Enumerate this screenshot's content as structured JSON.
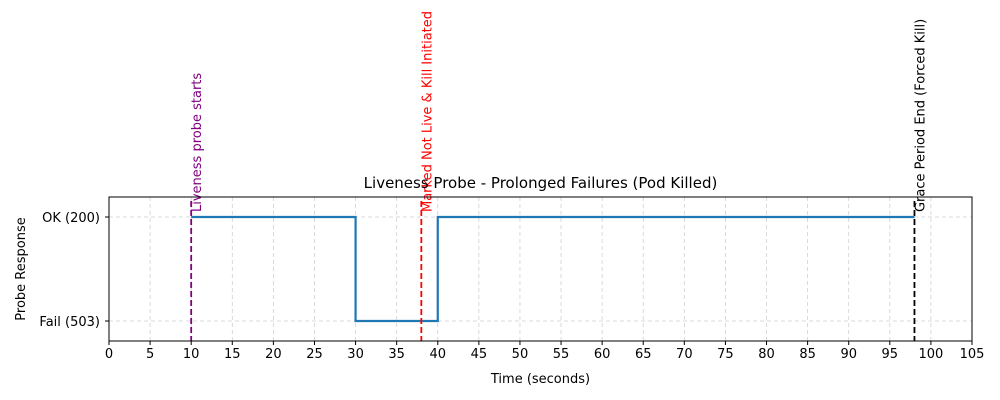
{
  "chart_data": {
    "type": "line",
    "title": "Liveness Probe - Prolonged Failures (Pod Killed)",
    "xlabel": "Time (seconds)",
    "ylabel": "Probe Response",
    "xlim": [
      0,
      105
    ],
    "x_ticks": [
      0,
      5,
      10,
      15,
      20,
      25,
      30,
      35,
      40,
      45,
      50,
      55,
      60,
      65,
      70,
      75,
      80,
      85,
      90,
      95,
      100,
      105
    ],
    "y_categories": [
      "Fail (503)",
      "OK (200)"
    ],
    "grid": true,
    "series": [
      {
        "color": "#1f77b4",
        "step": true,
        "points": [
          {
            "x": 10,
            "y": "OK (200)"
          },
          {
            "x": 30,
            "y": "OK (200)"
          },
          {
            "x": 30,
            "y": "Fail (503)"
          },
          {
            "x": 40,
            "y": "Fail (503)"
          },
          {
            "x": 40,
            "y": "OK (200)"
          },
          {
            "x": 98,
            "y": "OK (200)"
          }
        ]
      }
    ],
    "annotations": [
      {
        "x": 10,
        "label": "Liveness probe starts",
        "color": "#800080"
      },
      {
        "x": 38,
        "label": "Marked Not Live & Kill Initiated",
        "color": "#ff0000"
      },
      {
        "x": 98,
        "label": "Grace Period End (Forced Kill)",
        "color": "#000000"
      }
    ]
  }
}
